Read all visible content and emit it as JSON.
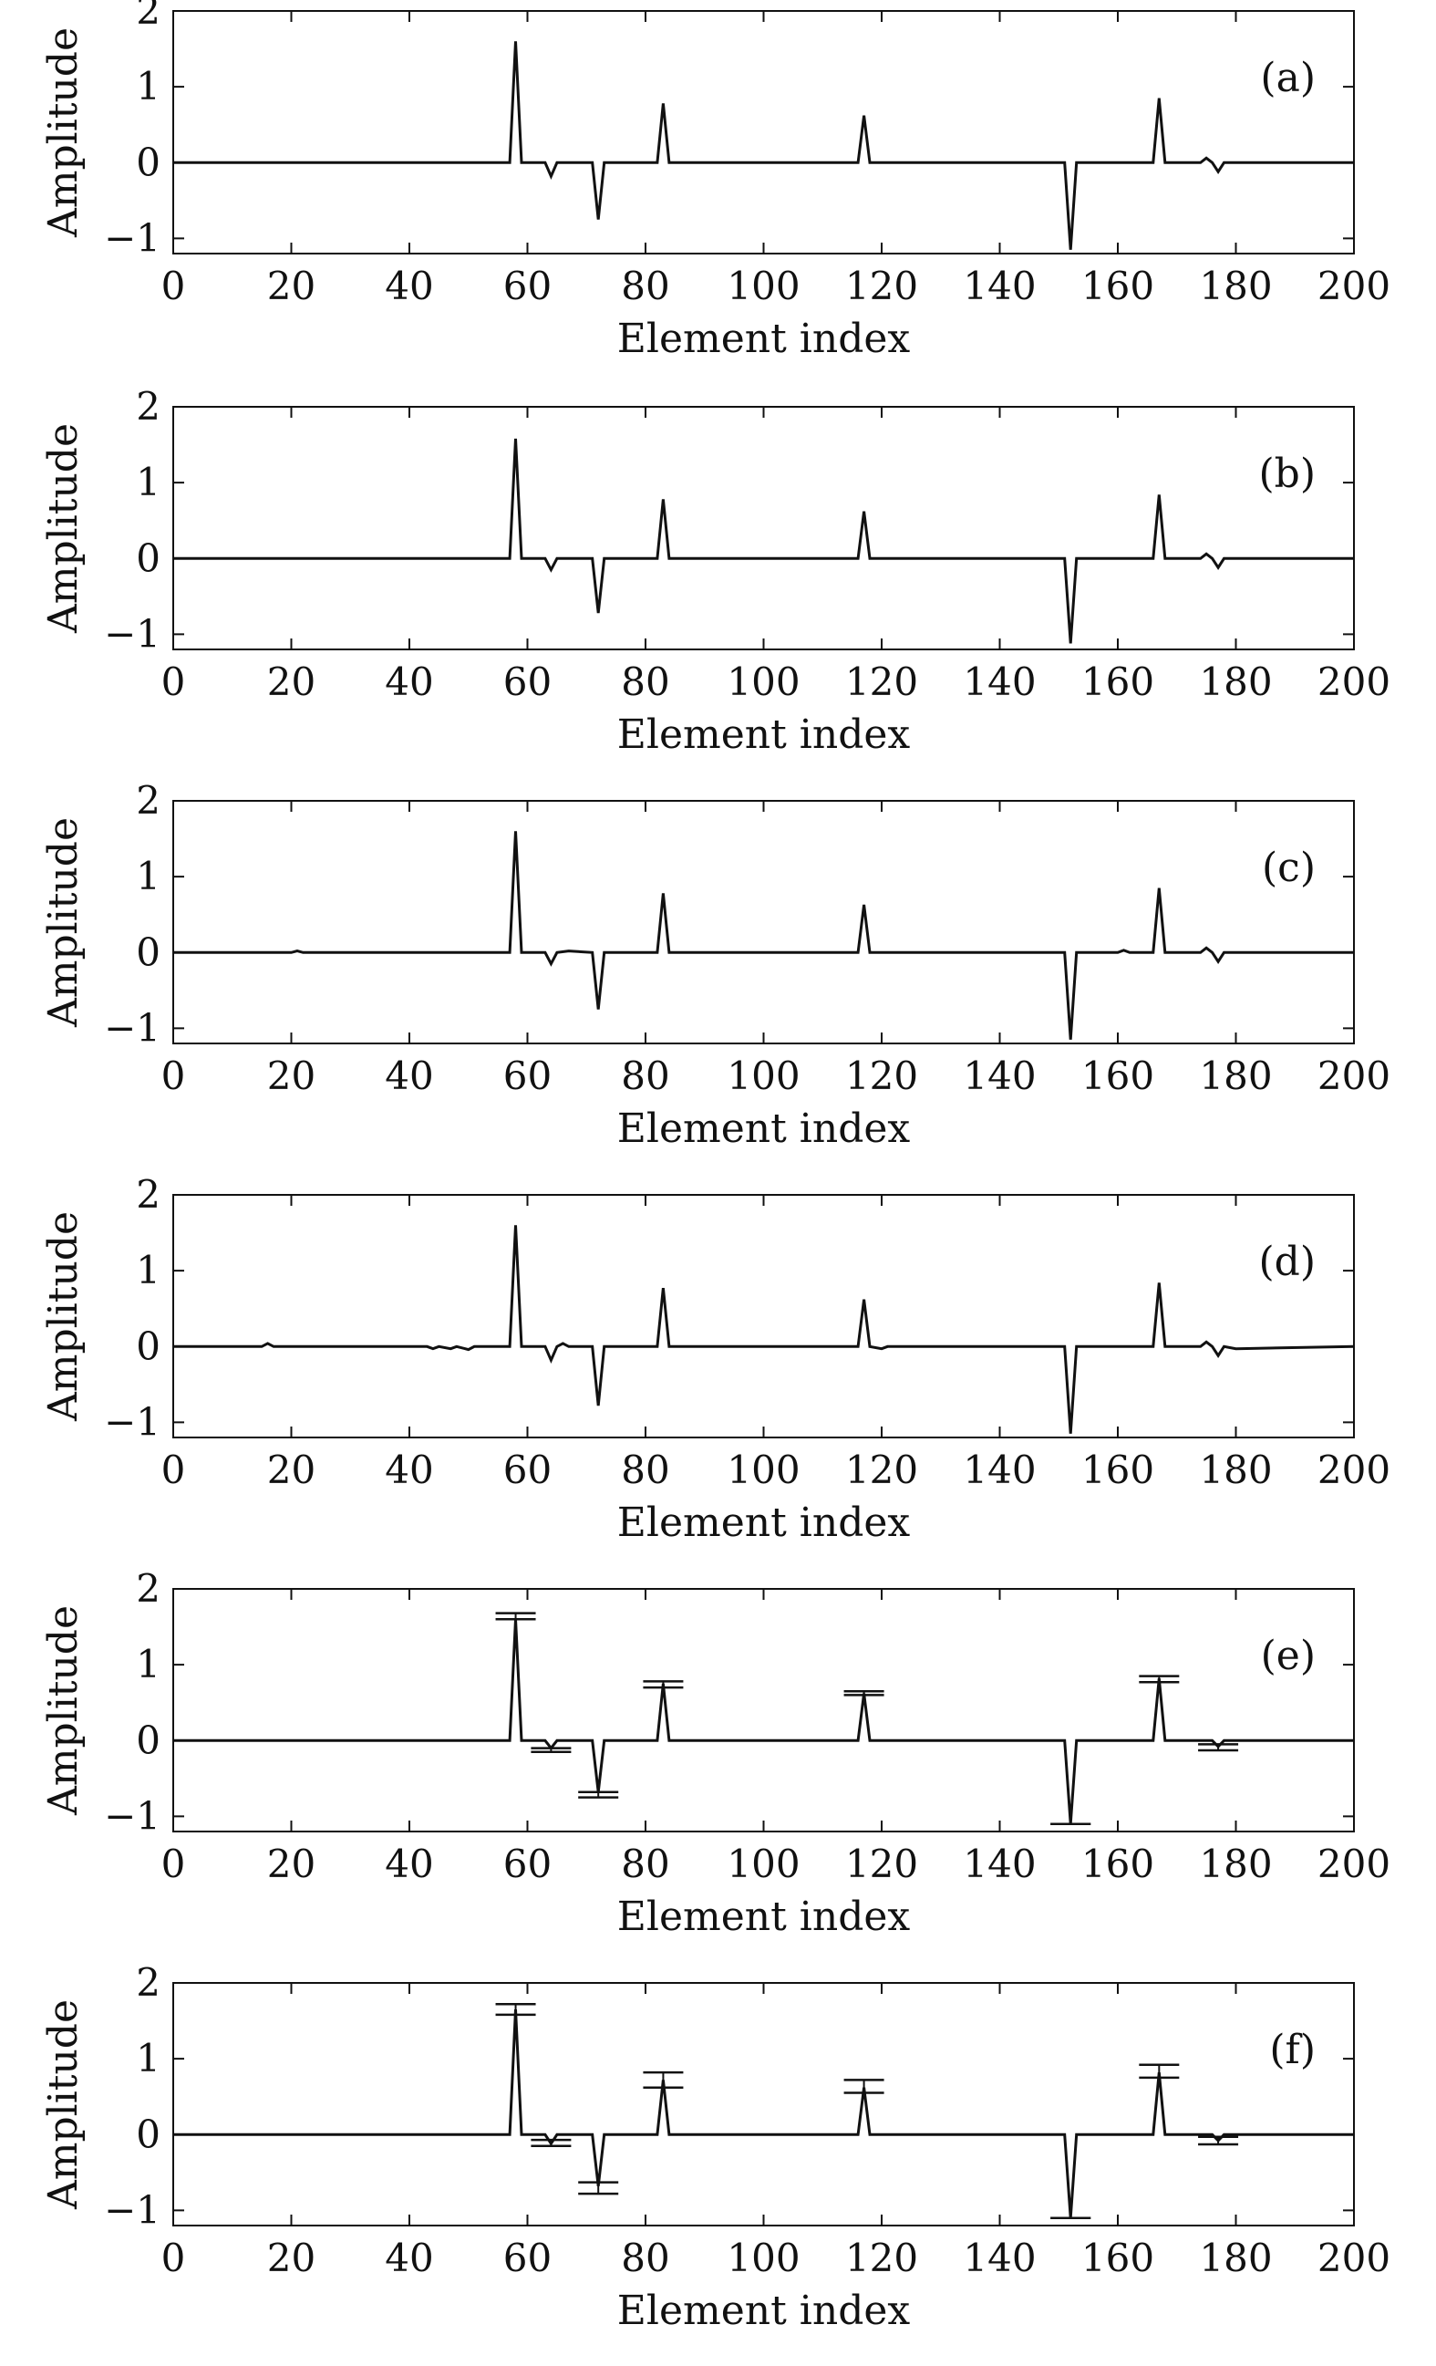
{
  "chart_data": [
    {
      "type": "line",
      "panel_label": "(a)",
      "xlabel": "Element index",
      "ylabel": "Amplitude",
      "xlim": [
        0,
        200
      ],
      "ylim": [
        -1.2,
        2
      ],
      "xticks": [
        0,
        20,
        40,
        60,
        80,
        100,
        120,
        140,
        160,
        180,
        200
      ],
      "yticks": [
        -1,
        0,
        1,
        2
      ],
      "series": [
        {
          "x": [
            0,
            57,
            58,
            59,
            63,
            64,
            65,
            71,
            72,
            73,
            82,
            83,
            84,
            116,
            117,
            118,
            151,
            152,
            153,
            166,
            167,
            168,
            174,
            175,
            176,
            177,
            178,
            200
          ],
          "y": [
            0,
            0,
            1.6,
            0,
            0,
            -0.18,
            0,
            0,
            -0.75,
            0,
            0,
            0.78,
            0,
            0,
            0.62,
            0,
            0,
            -1.15,
            0,
            0,
            0.85,
            0,
            0,
            0.06,
            0,
            -0.12,
            0,
            0
          ]
        }
      ],
      "error_bars": []
    },
    {
      "type": "line",
      "panel_label": "(b)",
      "xlabel": "Element index",
      "ylabel": "Amplitude",
      "xlim": [
        0,
        200
      ],
      "ylim": [
        -1.2,
        2
      ],
      "xticks": [
        0,
        20,
        40,
        60,
        80,
        100,
        120,
        140,
        160,
        180,
        200
      ],
      "yticks": [
        -1,
        0,
        1,
        2
      ],
      "series": [
        {
          "x": [
            0,
            57,
            58,
            59,
            63,
            64,
            65,
            71,
            72,
            73,
            82,
            83,
            84,
            116,
            117,
            118,
            151,
            152,
            153,
            166,
            167,
            168,
            174,
            175,
            176,
            177,
            178,
            200
          ],
          "y": [
            0,
            0,
            1.58,
            0,
            0,
            -0.15,
            0,
            0,
            -0.72,
            0,
            0,
            0.78,
            0,
            0,
            0.62,
            0,
            0,
            -1.12,
            0,
            0,
            0.84,
            0,
            0,
            0.06,
            0,
            -0.12,
            0,
            0
          ]
        }
      ],
      "error_bars": []
    },
    {
      "type": "line",
      "panel_label": "(c)",
      "xlabel": "Element index",
      "ylabel": "Amplitude",
      "xlim": [
        0,
        200
      ],
      "ylim": [
        -1.2,
        2
      ],
      "xticks": [
        0,
        20,
        40,
        60,
        80,
        100,
        120,
        140,
        160,
        180,
        200
      ],
      "yticks": [
        -1,
        0,
        1,
        2
      ],
      "series": [
        {
          "x": [
            0,
            20,
            21,
            22,
            57,
            58,
            59,
            63,
            64,
            65,
            67,
            71,
            72,
            73,
            82,
            83,
            84,
            116,
            117,
            118,
            151,
            152,
            153,
            160,
            161,
            162,
            166,
            167,
            168,
            174,
            175,
            176,
            177,
            178,
            200
          ],
          "y": [
            0,
            0,
            0.02,
            0,
            0,
            1.6,
            0,
            0,
            -0.15,
            0,
            0.02,
            0,
            -0.75,
            0,
            0,
            0.78,
            0,
            0,
            0.63,
            0,
            0,
            -1.15,
            0,
            0,
            0.03,
            0,
            0,
            0.85,
            0,
            0,
            0.06,
            0,
            -0.12,
            0,
            0
          ]
        }
      ],
      "error_bars": []
    },
    {
      "type": "line",
      "panel_label": "(d)",
      "xlabel": "Element index",
      "ylabel": "Amplitude",
      "xlim": [
        0,
        200
      ],
      "ylim": [
        -1.2,
        2
      ],
      "xticks": [
        0,
        20,
        40,
        60,
        80,
        100,
        120,
        140,
        160,
        180,
        200
      ],
      "yticks": [
        -1,
        0,
        1,
        2
      ],
      "series": [
        {
          "x": [
            0,
            15,
            16,
            17,
            43,
            44,
            45,
            47,
            48,
            50,
            51,
            57,
            58,
            59,
            63,
            64,
            65,
            66,
            67,
            71,
            72,
            73,
            82,
            83,
            84,
            116,
            117,
            118,
            120,
            121,
            151,
            152,
            153,
            166,
            167,
            168,
            174,
            175,
            176,
            177,
            178,
            180,
            200
          ],
          "y": [
            0,
            0,
            0.04,
            0,
            0,
            -0.03,
            0,
            -0.03,
            0,
            -0.04,
            0,
            0,
            1.6,
            0,
            0,
            -0.18,
            0,
            0.04,
            0,
            0,
            -0.78,
            0,
            0,
            0.77,
            0,
            0,
            0.62,
            0,
            -0.03,
            0,
            0,
            -1.15,
            0,
            0,
            0.84,
            0,
            0,
            0.06,
            0,
            -0.12,
            0,
            -0.03,
            0
          ]
        }
      ],
      "error_bars": []
    },
    {
      "type": "line",
      "panel_label": "(e)",
      "xlabel": "Element index",
      "ylabel": "Amplitude",
      "xlim": [
        0,
        200
      ],
      "ylim": [
        -1.2,
        2
      ],
      "xticks": [
        0,
        20,
        40,
        60,
        80,
        100,
        120,
        140,
        160,
        180,
        200
      ],
      "yticks": [
        -1,
        0,
        1,
        2
      ],
      "series": [
        {
          "x": [
            0,
            57,
            58,
            59,
            63,
            64,
            65,
            71,
            72,
            73,
            82,
            83,
            84,
            116,
            117,
            118,
            151,
            152,
            153,
            166,
            167,
            168,
            176,
            177,
            178,
            200
          ],
          "y": [
            0,
            0,
            1.6,
            0,
            0,
            -0.1,
            0,
            0,
            -0.68,
            0,
            0,
            0.75,
            0,
            0,
            0.62,
            0,
            0,
            -1.1,
            0,
            0,
            0.82,
            0,
            0,
            -0.08,
            0,
            0
          ]
        }
      ],
      "error_bars": [
        {
          "x": 58,
          "low": 1.6,
          "high": 1.68
        },
        {
          "x": 64,
          "low": -0.15,
          "high": -0.1
        },
        {
          "x": 72,
          "low": -0.75,
          "high": -0.68
        },
        {
          "x": 83,
          "low": 0.7,
          "high": 0.78
        },
        {
          "x": 117,
          "low": 0.6,
          "high": 0.65
        },
        {
          "x": 152,
          "low": -1.1,
          "high": -1.1
        },
        {
          "x": 167,
          "low": 0.77,
          "high": 0.85
        },
        {
          "x": 177,
          "low": -0.13,
          "high": -0.05
        }
      ]
    },
    {
      "type": "line",
      "panel_label": "(f)",
      "xlabel": "Element index",
      "ylabel": "Amplitude",
      "xlim": [
        0,
        200
      ],
      "ylim": [
        -1.2,
        2
      ],
      "xticks": [
        0,
        20,
        40,
        60,
        80,
        100,
        120,
        140,
        160,
        180,
        200
      ],
      "yticks": [
        -1,
        0,
        1,
        2
      ],
      "series": [
        {
          "x": [
            0,
            57,
            58,
            59,
            63,
            64,
            65,
            71,
            72,
            73,
            82,
            83,
            84,
            116,
            117,
            118,
            151,
            152,
            153,
            166,
            167,
            168,
            176,
            177,
            178,
            200
          ],
          "y": [
            0,
            0,
            1.65,
            0,
            0,
            -0.12,
            0,
            0,
            -0.68,
            0,
            0,
            0.72,
            0,
            0,
            0.62,
            0,
            0,
            -1.1,
            0,
            0,
            0.82,
            0,
            0,
            -0.08,
            0,
            0
          ]
        }
      ],
      "error_bars": [
        {
          "x": 58,
          "low": 1.58,
          "high": 1.72
        },
        {
          "x": 64,
          "low": -0.15,
          "high": -0.07
        },
        {
          "x": 72,
          "low": -0.78,
          "high": -0.63
        },
        {
          "x": 83,
          "low": 0.62,
          "high": 0.82
        },
        {
          "x": 117,
          "low": 0.55,
          "high": 0.72
        },
        {
          "x": 152,
          "low": -1.1,
          "high": -1.1
        },
        {
          "x": 167,
          "low": 0.75,
          "high": 0.92
        },
        {
          "x": 177,
          "low": -0.13,
          "high": -0.03
        }
      ]
    }
  ]
}
